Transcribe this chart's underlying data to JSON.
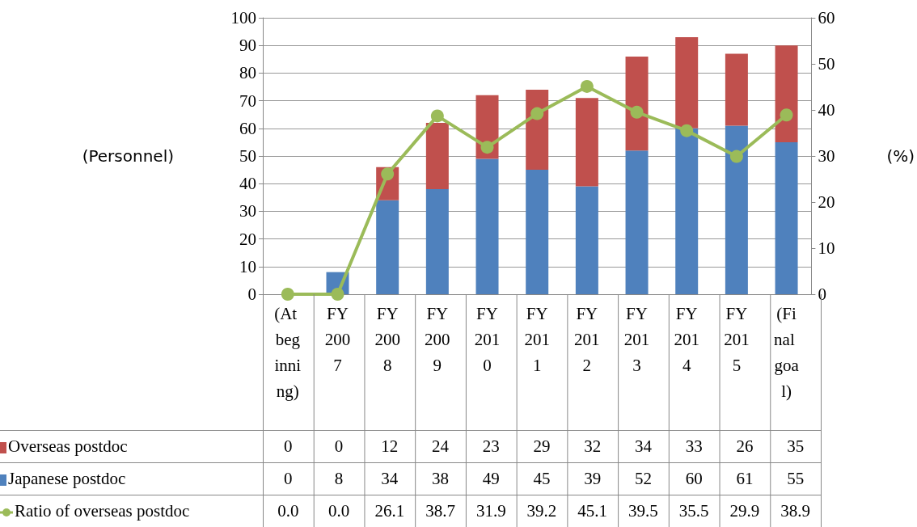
{
  "chart_data": {
    "type": "bar",
    "stacked": true,
    "categories": [
      "(At beginning)",
      "FY2007",
      "FY2008",
      "FY2009",
      "FY2010",
      "FY2011",
      "FY2012",
      "FY2013",
      "FY2014",
      "FY2015",
      "(Final goal)"
    ],
    "series": [
      {
        "name": "Japanese postdoc",
        "color": "#4f81bd",
        "values": [
          0,
          8,
          34,
          38,
          49,
          45,
          39,
          52,
          60,
          61,
          55
        ],
        "value_labels": [
          "0",
          "8",
          "34",
          "38",
          "49",
          "45",
          "39",
          "52",
          "60",
          "61",
          "55"
        ]
      },
      {
        "name": "Overseas postdoc",
        "color": "#c0504d",
        "values": [
          0,
          0,
          12,
          24,
          23,
          29,
          32,
          34,
          33,
          26,
          35
        ],
        "value_labels": [
          "0",
          "0",
          "12",
          "24",
          "23",
          "29",
          "32",
          "34",
          "33",
          "26",
          "35"
        ]
      },
      {
        "name": "Ratio of overseas postdoc",
        "type": "line",
        "axis": "y2",
        "color": "#9bbb59",
        "marker": "circle",
        "values": [
          0.0,
          0.0,
          26.1,
          38.7,
          31.9,
          39.2,
          45.1,
          39.5,
          35.5,
          29.9,
          38.9
        ],
        "value_labels": [
          "0.0",
          "0.0",
          "26.1",
          "38.7",
          "31.9",
          "39.2",
          "45.1",
          "39.5",
          "35.5",
          "29.9",
          "38.9"
        ]
      }
    ],
    "ylabel": "(Personnel)",
    "y2label": "(%)",
    "ylim": [
      0,
      100
    ],
    "yticks": [
      0,
      10,
      20,
      30,
      40,
      50,
      60,
      70,
      80,
      90,
      100
    ],
    "y2lim": [
      0,
      60
    ],
    "y2ticks": [
      0,
      10,
      20,
      30,
      40,
      50,
      60
    ],
    "grid": "y",
    "legend": "bottom"
  }
}
